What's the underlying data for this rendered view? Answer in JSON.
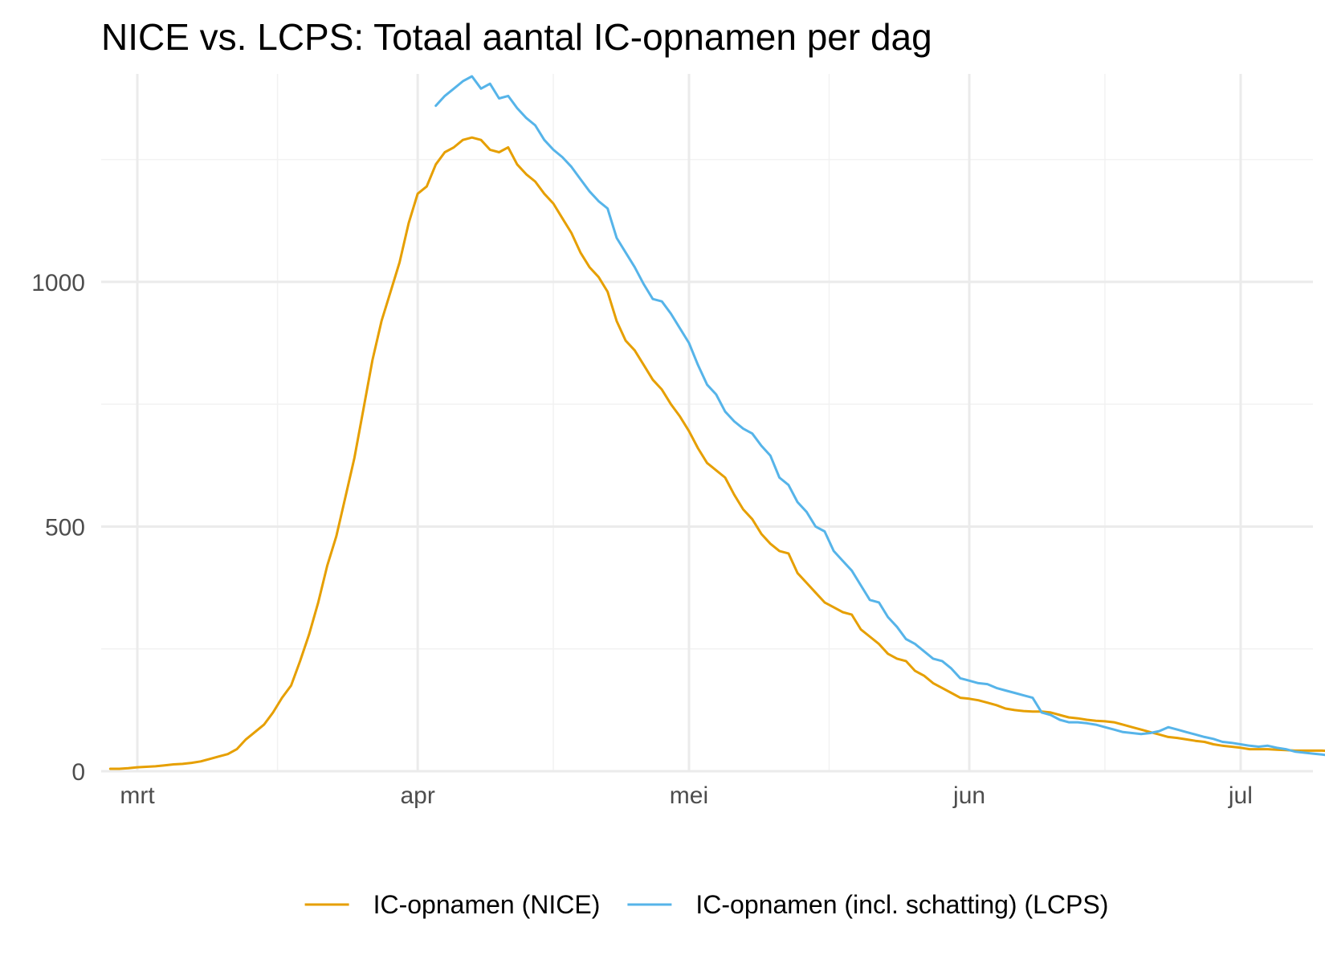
{
  "chart_data": {
    "type": "line",
    "title": "NICE vs. LCPS: Totaal aantal IC-opnamen per dag",
    "subtitle": "",
    "xlabel": "",
    "ylabel": "",
    "x_axis": {
      "type": "date",
      "range": [
        "2020-02-26",
        "2020-07-09"
      ],
      "ticks": [
        {
          "date": "2020-03-01",
          "label": "mrt"
        },
        {
          "date": "2020-04-01",
          "label": "apr"
        },
        {
          "date": "2020-05-01",
          "label": "mei"
        },
        {
          "date": "2020-06-01",
          "label": "jun"
        },
        {
          "date": "2020-07-01",
          "label": "jul"
        }
      ]
    },
    "y_axis": {
      "range": [
        0,
        1425
      ],
      "ticks": [
        {
          "value": 0,
          "label": "0"
        },
        {
          "value": 500,
          "label": "500"
        },
        {
          "value": 1000,
          "label": "1000"
        }
      ],
      "minor_ticks": [
        250,
        750,
        1250
      ]
    },
    "grid": true,
    "legend": {
      "position": "bottom"
    },
    "series": [
      {
        "name": "IC-opnamen (NICE)",
        "color": "#E69F00",
        "start_date": "2020-02-27",
        "values": [
          5,
          5,
          6,
          8,
          9,
          10,
          12,
          14,
          15,
          17,
          20,
          25,
          30,
          35,
          45,
          65,
          80,
          95,
          120,
          150,
          175,
          225,
          280,
          345,
          420,
          480,
          560,
          640,
          740,
          840,
          920,
          980,
          1040,
          1120,
          1180,
          1195,
          1240,
          1265,
          1275,
          1290,
          1295,
          1290,
          1270,
          1265,
          1275,
          1240,
          1220,
          1205,
          1180,
          1160,
          1130,
          1100,
          1060,
          1030,
          1010,
          980,
          920,
          880,
          860,
          830,
          800,
          780,
          750,
          725,
          695,
          660,
          630,
          615,
          600,
          565,
          535,
          515,
          485,
          465,
          450,
          445,
          405,
          385,
          365,
          345,
          335,
          325,
          320,
          290,
          275,
          260,
          240,
          230,
          225,
          205,
          195,
          180,
          170,
          160,
          150,
          148,
          145,
          140,
          135,
          128,
          125,
          123,
          122,
          122,
          120,
          115,
          110,
          108,
          105,
          103,
          102,
          100,
          95,
          90,
          85,
          80,
          75,
          70,
          68,
          65,
          62,
          60,
          55,
          52,
          50,
          48,
          45,
          45,
          45,
          44,
          43,
          42,
          42,
          42,
          42,
          41
        ]
      },
      {
        "name": "IC-opnamen (incl. schatting) (LCPS)",
        "color": "#56B4E9",
        "start_date": "2020-04-03",
        "values": [
          1360,
          1380,
          1395,
          1410,
          1420,
          1395,
          1405,
          1375,
          1380,
          1355,
          1335,
          1320,
          1290,
          1270,
          1255,
          1235,
          1210,
          1185,
          1165,
          1150,
          1090,
          1060,
          1030,
          995,
          965,
          960,
          935,
          905,
          875,
          830,
          790,
          770,
          735,
          715,
          700,
          690,
          665,
          645,
          600,
          585,
          550,
          530,
          500,
          490,
          450,
          430,
          410,
          380,
          350,
          345,
          315,
          295,
          270,
          260,
          245,
          230,
          225,
          210,
          190,
          185,
          180,
          178,
          170,
          165,
          160,
          155,
          150,
          120,
          115,
          105,
          100,
          100,
          98,
          95,
          90,
          85,
          80,
          78,
          76,
          78,
          82,
          90,
          85,
          80,
          75,
          70,
          66,
          60,
          58,
          55,
          52,
          50,
          52,
          48,
          45,
          40,
          38,
          36,
          34,
          32,
          30,
          27,
          25,
          23,
          22,
          22,
          25
        ]
      }
    ]
  }
}
